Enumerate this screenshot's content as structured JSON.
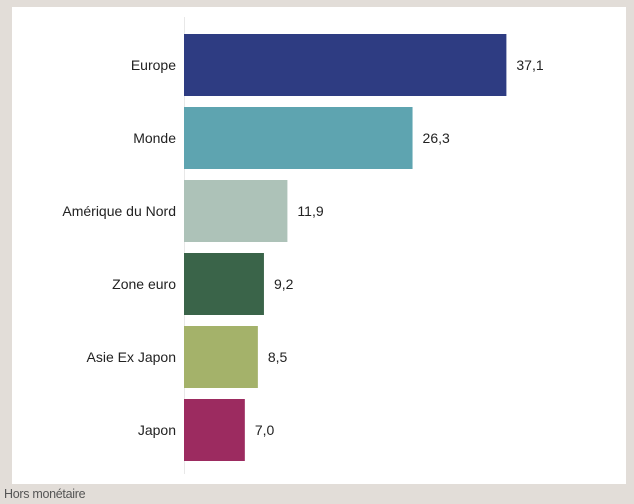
{
  "footnote": "Hors monétaire",
  "chart_data": {
    "type": "bar",
    "orientation": "horizontal",
    "title": "",
    "xlabel": "",
    "ylabel": "",
    "categories": [
      "Europe",
      "Monde",
      "Amérique du Nord",
      "Zone euro",
      "Asie Ex Japon",
      "Japon"
    ],
    "values": [
      37.1,
      26.3,
      11.9,
      9.2,
      8.5,
      7.0
    ],
    "value_labels": [
      "37,1",
      "26,3",
      "11,9",
      "9,2",
      "8,5",
      "7,0"
    ],
    "colors": [
      "#2e3c82",
      "#5ea4b0",
      "#adc2b8",
      "#3a6449",
      "#a4b26a",
      "#9c2b60"
    ],
    "xlim": [
      0,
      40
    ],
    "grid": false,
    "legend": "none"
  }
}
